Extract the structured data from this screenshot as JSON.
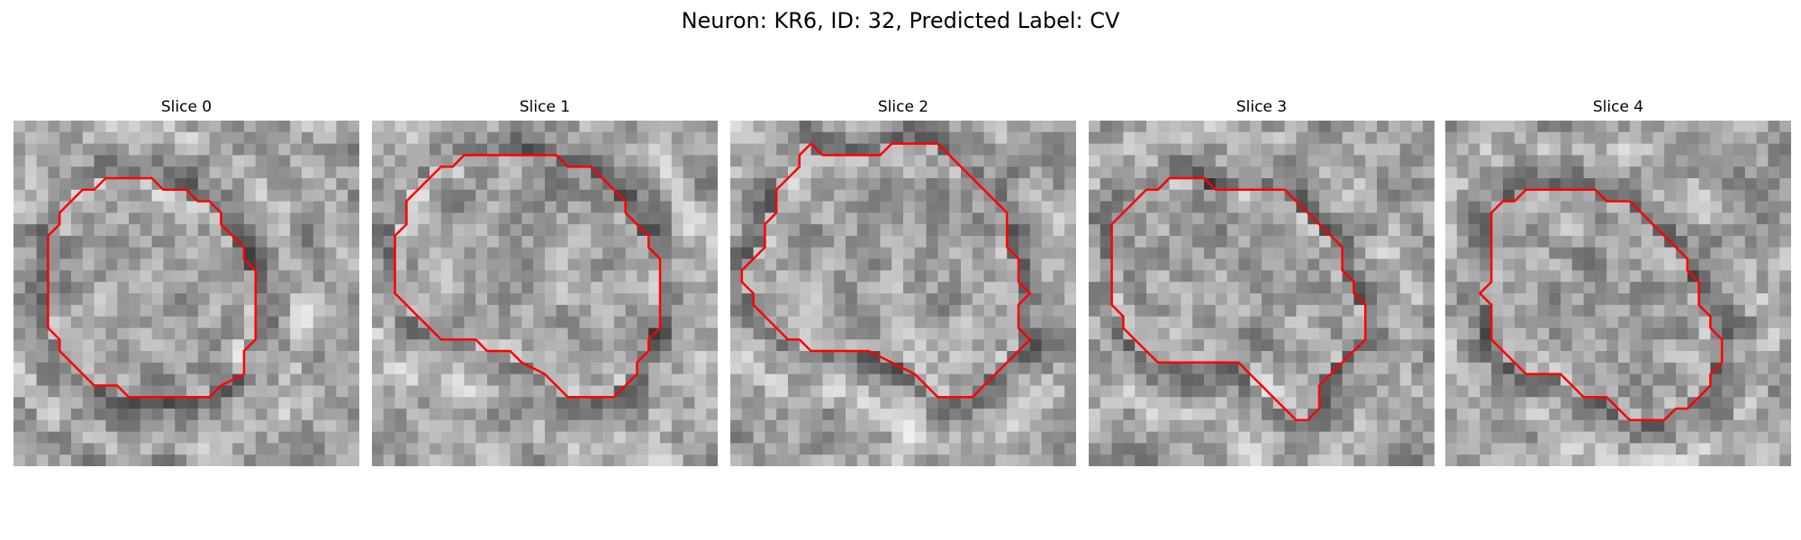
{
  "figure": {
    "title": "Neuron: KR6, ID: 32, Predicted Label: CV"
  },
  "colors": {
    "contour": "#ff0000",
    "background": "#ffffff"
  },
  "panels": [
    {
      "title": "Slice 0",
      "contour": [
        [
          8,
          5
        ],
        [
          12,
          5
        ],
        [
          13,
          6
        ],
        [
          15,
          6
        ],
        [
          16,
          7
        ],
        [
          17,
          7
        ],
        [
          18,
          8
        ],
        [
          18,
          9
        ],
        [
          19,
          10
        ],
        [
          20,
          11
        ],
        [
          20,
          12
        ],
        [
          21,
          13
        ],
        [
          21,
          16
        ],
        [
          21,
          19
        ],
        [
          20,
          20
        ],
        [
          20,
          22
        ],
        [
          18,
          23
        ],
        [
          17,
          24
        ],
        [
          10,
          24
        ],
        [
          9,
          23
        ],
        [
          7,
          23
        ],
        [
          5,
          21
        ],
        [
          4,
          20
        ],
        [
          4,
          19
        ],
        [
          3,
          18
        ],
        [
          3,
          15
        ],
        [
          3,
          11
        ],
        [
          3,
          10
        ],
        [
          4,
          9
        ],
        [
          4,
          8
        ],
        [
          5,
          7
        ],
        [
          6,
          6
        ],
        [
          7,
          6
        ]
      ]
    },
    {
      "title": "Slice 1",
      "contour": [
        [
          8,
          3
        ],
        [
          11,
          3
        ],
        [
          16,
          3
        ],
        [
          17,
          4
        ],
        [
          19,
          4
        ],
        [
          20,
          5
        ],
        [
          21,
          6
        ],
        [
          22,
          7
        ],
        [
          22,
          8
        ],
        [
          23,
          9
        ],
        [
          24,
          10
        ],
        [
          24,
          11
        ],
        [
          25,
          12
        ],
        [
          25,
          15
        ],
        [
          25,
          17
        ],
        [
          25,
          18
        ],
        [
          24,
          19
        ],
        [
          24,
          20
        ],
        [
          23,
          21
        ],
        [
          23,
          22
        ],
        [
          22,
          23
        ],
        [
          21,
          24
        ],
        [
          17,
          24
        ],
        [
          16,
          23
        ],
        [
          15,
          22
        ],
        [
          13,
          21
        ],
        [
          12,
          20
        ],
        [
          10,
          20
        ],
        [
          9,
          19
        ],
        [
          6,
          19
        ],
        [
          5,
          18
        ],
        [
          4,
          17
        ],
        [
          3,
          16
        ],
        [
          2,
          15
        ],
        [
          2,
          11
        ],
        [
          2,
          10
        ],
        [
          3,
          9
        ],
        [
          3,
          7
        ],
        [
          4,
          6
        ],
        [
          5,
          5
        ],
        [
          6,
          4
        ],
        [
          7,
          4
        ]
      ]
    },
    {
      "title": "Slice 2",
      "contour": [
        [
          7,
          2
        ],
        [
          8,
          3
        ],
        [
          13,
          3
        ],
        [
          14,
          2
        ],
        [
          18,
          2
        ],
        [
          19,
          3
        ],
        [
          20,
          4
        ],
        [
          21,
          5
        ],
        [
          22,
          6
        ],
        [
          23,
          7
        ],
        [
          24,
          8
        ],
        [
          24,
          11
        ],
        [
          25,
          12
        ],
        [
          25,
          14
        ],
        [
          26,
          15
        ],
        [
          25,
          16
        ],
        [
          25,
          18
        ],
        [
          26,
          19
        ],
        [
          25,
          20
        ],
        [
          24,
          21
        ],
        [
          23,
          22
        ],
        [
          22,
          23
        ],
        [
          21,
          24
        ],
        [
          18,
          24
        ],
        [
          17,
          23
        ],
        [
          16,
          22
        ],
        [
          14,
          21
        ],
        [
          12,
          20
        ],
        [
          7,
          20
        ],
        [
          6,
          19
        ],
        [
          5,
          19
        ],
        [
          4,
          18
        ],
        [
          3,
          17
        ],
        [
          2,
          16
        ],
        [
          2,
          15
        ],
        [
          1,
          14
        ],
        [
          1,
          13
        ],
        [
          2,
          12
        ],
        [
          3,
          11
        ],
        [
          3,
          9
        ],
        [
          4,
          8
        ],
        [
          4,
          6
        ],
        [
          5,
          5
        ],
        [
          6,
          4
        ],
        [
          6,
          3
        ]
      ]
    },
    {
      "title": "Slice 3",
      "contour": [
        [
          7,
          5
        ],
        [
          10,
          5
        ],
        [
          11,
          6
        ],
        [
          17,
          6
        ],
        [
          18,
          7
        ],
        [
          19,
          8
        ],
        [
          20,
          9
        ],
        [
          21,
          10
        ],
        [
          22,
          11
        ],
        [
          22,
          13
        ],
        [
          23,
          14
        ],
        [
          23,
          15
        ],
        [
          24,
          16
        ],
        [
          24,
          18
        ],
        [
          24,
          19
        ],
        [
          23,
          20
        ],
        [
          22,
          21
        ],
        [
          21,
          22
        ],
        [
          20,
          23
        ],
        [
          20,
          25
        ],
        [
          19,
          26
        ],
        [
          18,
          26
        ],
        [
          17,
          25
        ],
        [
          16,
          24
        ],
        [
          15,
          23
        ],
        [
          14,
          22
        ],
        [
          13,
          21
        ],
        [
          6,
          21
        ],
        [
          5,
          20
        ],
        [
          4,
          19
        ],
        [
          3,
          18
        ],
        [
          3,
          17
        ],
        [
          2,
          16
        ],
        [
          2,
          13
        ],
        [
          2,
          9
        ],
        [
          3,
          8
        ],
        [
          4,
          7
        ],
        [
          5,
          6
        ],
        [
          6,
          6
        ]
      ]
    },
    {
      "title": "Slice 4",
      "contour": [
        [
          7,
          6
        ],
        [
          13,
          6
        ],
        [
          14,
          7
        ],
        [
          16,
          7
        ],
        [
          17,
          8
        ],
        [
          18,
          9
        ],
        [
          19,
          10
        ],
        [
          20,
          11
        ],
        [
          21,
          12
        ],
        [
          21,
          13
        ],
        [
          22,
          14
        ],
        [
          22,
          16
        ],
        [
          23,
          17
        ],
        [
          23,
          18
        ],
        [
          24,
          19
        ],
        [
          24,
          21
        ],
        [
          23,
          22
        ],
        [
          23,
          23
        ],
        [
          22,
          24
        ],
        [
          21,
          25
        ],
        [
          20,
          25
        ],
        [
          19,
          26
        ],
        [
          16,
          26
        ],
        [
          15,
          25
        ],
        [
          14,
          24
        ],
        [
          12,
          24
        ],
        [
          11,
          23
        ],
        [
          10,
          22
        ],
        [
          7,
          22
        ],
        [
          6,
          21
        ],
        [
          5,
          20
        ],
        [
          4,
          19
        ],
        [
          4,
          16
        ],
        [
          3,
          15
        ],
        [
          4,
          14
        ],
        [
          4,
          8
        ],
        [
          5,
          7
        ],
        [
          6,
          7
        ]
      ]
    }
  ]
}
